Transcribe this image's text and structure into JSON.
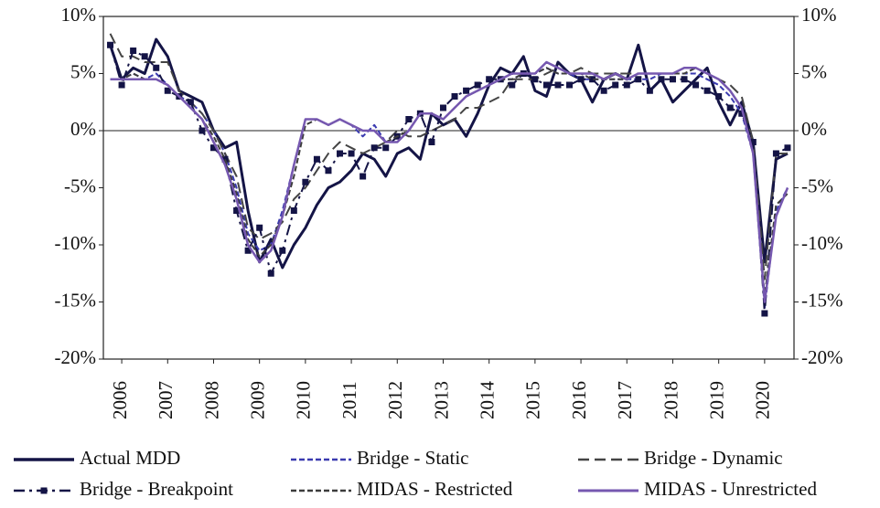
{
  "chart_data": {
    "type": "line",
    "x": [
      2006.25,
      2006.5,
      2006.75,
      2007,
      2007.25,
      2007.5,
      2007.75,
      2008,
      2008.25,
      2008.5,
      2008.75,
      2009,
      2009.25,
      2009.5,
      2009.75,
      2010,
      2010.25,
      2010.5,
      2010.75,
      2011,
      2011.25,
      2011.5,
      2011.75,
      2012,
      2012.25,
      2012.5,
      2012.75,
      2013,
      2013.25,
      2013.5,
      2013.75,
      2014,
      2014.25,
      2014.5,
      2014.75,
      2015,
      2015.25,
      2015.5,
      2015.75,
      2016,
      2016.25,
      2016.5,
      2016.75,
      2017,
      2017.25,
      2017.5,
      2017.75,
      2018,
      2018.25,
      2018.5,
      2018.75,
      2019,
      2019.25,
      2019.5,
      2019.75,
      2020,
      2020.25,
      2020.5,
      2020.75,
      2021
    ],
    "xlim": [
      2006.1,
      2021.14
    ],
    "xticks": [
      {
        "value": 2006.5,
        "label": "2006"
      },
      {
        "value": 2007.5,
        "label": "2007"
      },
      {
        "value": 2008.5,
        "label": "2008"
      },
      {
        "value": 2009.5,
        "label": "2009"
      },
      {
        "value": 2010.5,
        "label": "2010"
      },
      {
        "value": 2011.5,
        "label": "2011"
      },
      {
        "value": 2012.5,
        "label": "2012"
      },
      {
        "value": 2013.5,
        "label": "2013"
      },
      {
        "value": 2014.5,
        "label": "2014"
      },
      {
        "value": 2015.5,
        "label": "2015"
      },
      {
        "value": 2016.5,
        "label": "2016"
      },
      {
        "value": 2017.5,
        "label": "2017"
      },
      {
        "value": 2018.5,
        "label": "2018"
      },
      {
        "value": 2019.5,
        "label": "2019"
      },
      {
        "value": 2020.5,
        "label": "2020"
      }
    ],
    "ylim": [
      -20,
      10
    ],
    "yticks": [
      {
        "value": -20,
        "label": "-20%"
      },
      {
        "value": -15,
        "label": "-15%"
      },
      {
        "value": -10,
        "label": "-10%"
      },
      {
        "value": -5,
        "label": "-5%"
      },
      {
        "value": 0,
        "label": "0%"
      },
      {
        "value": 5,
        "label": "5%"
      },
      {
        "value": 10,
        "label": "10%"
      }
    ],
    "y2lim": [
      -20,
      10
    ],
    "y2ticks": [
      {
        "value": -20,
        "label": "-20%"
      },
      {
        "value": -15,
        "label": "-15%"
      },
      {
        "value": -10,
        "label": "-10%"
      },
      {
        "value": -5,
        "label": "-5%"
      },
      {
        "value": 0,
        "label": "0%"
      },
      {
        "value": 5,
        "label": "5%"
      },
      {
        "value": 10,
        "label": "10%"
      }
    ],
    "zero_line": true,
    "legend": "bottom",
    "series": [
      {
        "name": "Actual MDD",
        "color": "#141446",
        "style": "solid",
        "width": 3,
        "values": [
          7.5,
          4.5,
          5.5,
          5.0,
          8.0,
          6.5,
          3.5,
          3.0,
          2.5,
          0.0,
          -1.5,
          -1.0,
          -7.0,
          -11.5,
          -9.5,
          -12.0,
          -10.0,
          -8.5,
          -6.5,
          -5.0,
          -4.5,
          -3.5,
          -2.0,
          -2.5,
          -4.0,
          -2.0,
          -1.5,
          -2.5,
          1.5,
          0.5,
          1.0,
          -0.5,
          1.5,
          4.0,
          5.5,
          5.0,
          6.5,
          3.5,
          3.0,
          6.0,
          5.0,
          4.5,
          2.5,
          4.5,
          5.0,
          4.5,
          7.5,
          3.5,
          4.5,
          2.5,
          3.5,
          4.5,
          5.5,
          2.5,
          0.5,
          2.5,
          -1.0,
          -11.5,
          -2.5,
          -2.0
        ]
      },
      {
        "name": "Bridge - Static",
        "color": "#3a3ab0",
        "style": "dashed",
        "width": 2,
        "values": [
          4.5,
          4.5,
          5.0,
          4.5,
          5.0,
          4.0,
          3.0,
          2.5,
          1.5,
          0.0,
          -2.0,
          -5.0,
          -9.0,
          -10.5,
          -10.0,
          -7.0,
          -3.0,
          1.0,
          1.0,
          0.5,
          1.0,
          0.5,
          -0.5,
          0.5,
          -1.0,
          -1.0,
          0.0,
          1.5,
          1.5,
          1.0,
          2.0,
          3.0,
          3.5,
          4.0,
          4.5,
          4.5,
          5.0,
          5.0,
          5.5,
          5.0,
          5.0,
          4.5,
          4.5,
          4.5,
          4.5,
          4.5,
          4.5,
          4.5,
          5.0,
          5.0,
          5.0,
          5.0,
          4.5,
          4.0,
          3.0,
          1.5,
          -2.0,
          -15.5,
          -7.0,
          -5.0
        ]
      },
      {
        "name": "Bridge - Dynamic",
        "color": "#444444",
        "style": "longdash",
        "width": 2,
        "values": [
          8.5,
          6.5,
          6.5,
          6.0,
          6.0,
          6.0,
          3.5,
          2.5,
          1.5,
          0.0,
          -2.0,
          -4.0,
          -8.5,
          -9.5,
          -9.0,
          -8.0,
          -6.0,
          -5.0,
          -3.5,
          -2.0,
          -1.0,
          -1.5,
          -2.0,
          -1.5,
          -1.0,
          0.0,
          -0.5,
          -0.5,
          0.0,
          0.5,
          1.0,
          2.0,
          2.0,
          2.5,
          3.0,
          4.5,
          4.5,
          4.5,
          5.0,
          5.5,
          5.0,
          5.5,
          5.0,
          5.0,
          5.0,
          5.0,
          5.0,
          5.0,
          5.0,
          5.0,
          5.5,
          5.5,
          5.0,
          4.5,
          4.0,
          3.0,
          -1.0,
          -13.0,
          -2.0,
          -2.0
        ]
      },
      {
        "name": "Bridge - Breakpoint",
        "color": "#141446",
        "style": "dashdot",
        "width": 2,
        "marker": "square",
        "values": [
          7.5,
          4.0,
          7.0,
          6.5,
          5.5,
          3.5,
          3.0,
          2.5,
          0.0,
          -1.5,
          -2.5,
          -7.0,
          -10.5,
          -8.5,
          -12.5,
          -10.5,
          -7.0,
          -4.5,
          -2.5,
          -3.5,
          -2.0,
          -2.0,
          -4.0,
          -1.5,
          -1.5,
          -0.5,
          1.0,
          1.5,
          -1.0,
          2.0,
          3.0,
          3.5,
          4.0,
          4.5,
          4.5,
          4.0,
          5.0,
          4.5,
          4.0,
          4.0,
          4.0,
          4.5,
          4.5,
          3.5,
          4.0,
          4.0,
          4.5,
          3.5,
          4.5,
          4.5,
          4.5,
          4.0,
          3.5,
          3.0,
          2.0,
          1.5,
          -1.0,
          -16.0,
          -2.0,
          -1.5
        ]
      },
      {
        "name": "MIDAS - Restricted",
        "color": "#3c3c3c",
        "style": "dashed",
        "width": 2,
        "values": [
          4.5,
          4.5,
          5.0,
          4.5,
          4.5,
          4.0,
          3.0,
          2.0,
          1.0,
          -0.5,
          -2.5,
          -5.5,
          -9.5,
          -11.0,
          -10.0,
          -7.5,
          -4.0,
          0.5,
          1.0,
          0.5,
          1.0,
          0.5,
          0.0,
          0.0,
          -1.0,
          -0.5,
          0.0,
          1.5,
          1.5,
          1.0,
          2.0,
          3.0,
          3.5,
          4.0,
          4.5,
          4.5,
          5.0,
          5.0,
          5.5,
          5.0,
          5.0,
          5.0,
          4.5,
          4.5,
          4.5,
          4.5,
          5.0,
          5.0,
          5.0,
          5.0,
          5.0,
          5.5,
          5.0,
          4.5,
          3.5,
          2.0,
          -2.0,
          -14.5,
          -6.5,
          -5.5
        ]
      },
      {
        "name": "MIDAS - Unrestricted",
        "color": "#7658b0",
        "style": "solid",
        "width": 2.5,
        "values": [
          4.5,
          4.5,
          4.5,
          4.5,
          4.5,
          4.0,
          3.0,
          2.0,
          1.0,
          -1.0,
          -3.0,
          -6.0,
          -10.0,
          -11.5,
          -10.5,
          -7.5,
          -3.0,
          1.0,
          1.0,
          0.5,
          1.0,
          0.5,
          0.0,
          0.0,
          -1.0,
          -1.0,
          0.0,
          1.5,
          1.5,
          1.0,
          2.0,
          3.0,
          3.5,
          4.0,
          4.5,
          5.0,
          5.0,
          5.0,
          6.0,
          5.5,
          5.0,
          5.0,
          5.0,
          4.5,
          5.0,
          4.5,
          5.0,
          5.0,
          5.0,
          5.0,
          5.5,
          5.5,
          5.0,
          4.5,
          3.5,
          2.0,
          -2.0,
          -15.0,
          -7.5,
          -5.0
        ]
      }
    ]
  }
}
